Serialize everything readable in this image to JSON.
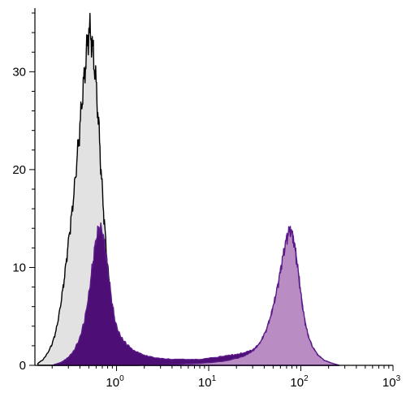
{
  "chart_data": {
    "type": "area",
    "xscale": "log",
    "xlim": [
      0.13,
      1000
    ],
    "ylim": [
      0,
      36.5
    ],
    "y_ticks": [
      {
        "value": 0,
        "label": "0"
      },
      {
        "value": 10,
        "label": "10"
      },
      {
        "value": 20,
        "label": "20"
      },
      {
        "value": 30,
        "label": "30"
      }
    ],
    "x_ticks": [
      {
        "value": 1,
        "base": "10",
        "exp": "0"
      },
      {
        "value": 10,
        "base": "10",
        "exp": "1"
      },
      {
        "value": 100,
        "base": "10",
        "exp": "2"
      },
      {
        "value": 1000,
        "base": "10",
        "exp": "3"
      }
    ],
    "grid": false,
    "series": [
      {
        "fill": "#e2e2e2",
        "stroke": "#000000",
        "points": [
          [
            0.14,
            0.2
          ],
          [
            0.16,
            0.6
          ],
          [
            0.18,
            1.3
          ],
          [
            0.2,
            2.2
          ],
          [
            0.22,
            3.5
          ],
          [
            0.24,
            5.4
          ],
          [
            0.26,
            7.6
          ],
          [
            0.28,
            10
          ],
          [
            0.3,
            12.6
          ],
          [
            0.33,
            15.8
          ],
          [
            0.36,
            19.5
          ],
          [
            0.39,
            23.2
          ],
          [
            0.42,
            26.8
          ],
          [
            0.45,
            29.9
          ],
          [
            0.48,
            32.6
          ],
          [
            0.5,
            34.3
          ],
          [
            0.53,
            33.6
          ],
          [
            0.56,
            31.7
          ],
          [
            0.6,
            28.7
          ],
          [
            0.64,
            24.5
          ],
          [
            0.68,
            19.8
          ],
          [
            0.73,
            15.2
          ],
          [
            0.78,
            11.3
          ],
          [
            0.84,
            8
          ],
          [
            0.9,
            5.4
          ],
          [
            0.97,
            3.4
          ],
          [
            1.05,
            2
          ],
          [
            1.15,
            1.1
          ],
          [
            1.3,
            0.5
          ],
          [
            1.5,
            0.2
          ],
          [
            1.8,
            0
          ]
        ]
      },
      {
        "fill": "#4d0f75",
        "stroke": "#5b1a8a",
        "points": [
          [
            0.2,
            0
          ],
          [
            0.25,
            0.3
          ],
          [
            0.3,
            0.8
          ],
          [
            0.35,
            1.6
          ],
          [
            0.4,
            2.8
          ],
          [
            0.45,
            4.6
          ],
          [
            0.5,
            7.2
          ],
          [
            0.55,
            10.3
          ],
          [
            0.6,
            12.9
          ],
          [
            0.65,
            14.1
          ],
          [
            0.7,
            13.7
          ],
          [
            0.76,
            11.7
          ],
          [
            0.82,
            9
          ],
          [
            0.9,
            6.2
          ],
          [
            0.97,
            4.4
          ],
          [
            1.05,
            3.4
          ],
          [
            1.15,
            2.7
          ],
          [
            1.3,
            2.1
          ],
          [
            1.5,
            1.6
          ],
          [
            1.8,
            1.2
          ],
          [
            2.2,
            0.9
          ],
          [
            3,
            0.7
          ],
          [
            4,
            0.6
          ],
          [
            6,
            0.6
          ],
          [
            8,
            0.6
          ],
          [
            12,
            0.8
          ],
          [
            16,
            1
          ],
          [
            20,
            1.1
          ],
          [
            25,
            1.3
          ],
          [
            30,
            1.6
          ],
          [
            35,
            2.1
          ],
          [
            40,
            3.1
          ],
          [
            46,
            4.6
          ],
          [
            52,
            6.6
          ],
          [
            58,
            8.8
          ],
          [
            64,
            11
          ],
          [
            70,
            12.9
          ],
          [
            76,
            13.8
          ],
          [
            82,
            13.1
          ],
          [
            88,
            11.4
          ],
          [
            95,
            9
          ],
          [
            102,
            6.6
          ],
          [
            110,
            4.6
          ],
          [
            120,
            3
          ],
          [
            135,
            1.8
          ],
          [
            155,
            1
          ],
          [
            180,
            0.5
          ],
          [
            220,
            0.2
          ],
          [
            260,
            0
          ]
        ]
      },
      {
        "fill": "#b98dc3",
        "stroke": "#5b1a8a",
        "points": [
          [
            2,
            0
          ],
          [
            4,
            0.1
          ],
          [
            8,
            0.2
          ],
          [
            14,
            0.4
          ],
          [
            20,
            0.7
          ],
          [
            25,
            1
          ],
          [
            30,
            1.5
          ],
          [
            35,
            2.1
          ],
          [
            40,
            3.1
          ],
          [
            46,
            4.6
          ],
          [
            52,
            6.6
          ],
          [
            58,
            8.8
          ],
          [
            64,
            11
          ],
          [
            70,
            12.9
          ],
          [
            76,
            13.8
          ],
          [
            82,
            13.1
          ],
          [
            88,
            11.4
          ],
          [
            95,
            9
          ],
          [
            102,
            6.6
          ],
          [
            110,
            4.6
          ],
          [
            120,
            3
          ],
          [
            135,
            1.8
          ],
          [
            155,
            1
          ],
          [
            180,
            0.5
          ],
          [
            220,
            0.2
          ],
          [
            260,
            0
          ]
        ]
      }
    ]
  }
}
